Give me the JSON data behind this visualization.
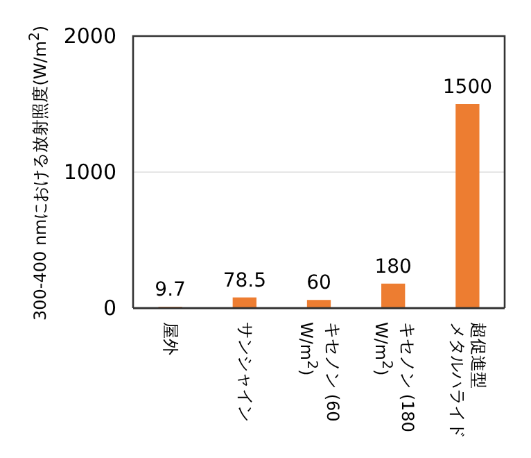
{
  "chart_data": {
    "type": "bar",
    "ylabel": "300-400 nmにおける放射照度(W/m$^{2}$)",
    "categories": [
      "屋外",
      "サンシャイン",
      "キセノン (60 W/m$^{2}$)",
      "キセノン (180 W/m$^{2}$)",
      "超促進型メタルハライド"
    ],
    "values": [
      9.7,
      78.5,
      60,
      180,
      1500
    ],
    "color": "#ed7d31",
    "ylim": [
      0,
      2000
    ],
    "yticks": [
      0,
      1000,
      2000
    ],
    "grid": "y",
    "data_labels": true
  }
}
